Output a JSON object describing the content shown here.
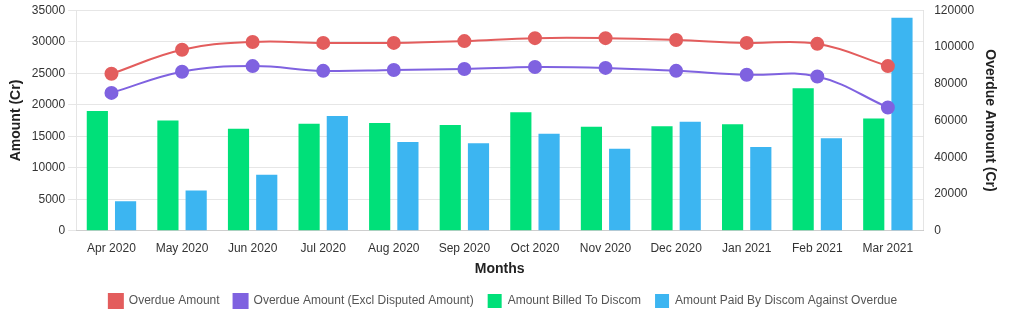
{
  "chart_data": {
    "type": "bar",
    "x_label": "Months",
    "y_label": "Amount (Cr)",
    "y2_label": "Overdue Amount (Cr)",
    "categories": [
      "Apr 2020",
      "May 2020",
      "Jun 2020",
      "Jul 2020",
      "Aug 2020",
      "Sep 2020",
      "Oct 2020",
      "Nov 2020",
      "Dec 2020",
      "Jan 2021",
      "Feb 2021",
      "Mar 2021"
    ],
    "ylim": [
      0,
      35000
    ],
    "yticks": [
      0,
      5000,
      10000,
      15000,
      20000,
      25000,
      30000,
      35000
    ],
    "y2lim": [
      0,
      120000
    ],
    "y2ticks": [
      0,
      20000,
      40000,
      60000,
      80000,
      100000,
      120000
    ],
    "grid": true,
    "legend": "bottom",
    "series": [
      {
        "name": "Overdue Amount",
        "type": "line",
        "axis": "y2",
        "color": "#e35d5d",
        "marker": "circle",
        "values": [
          85400,
          98500,
          102700,
          102200,
          102200,
          103200,
          104800,
          104800,
          103800,
          102200,
          101700,
          89600
        ]
      },
      {
        "name": "Overdue Amount (Excl Disputed Amount)",
        "type": "line",
        "axis": "y2",
        "color": "#7f62e0",
        "marker": "circle",
        "values": [
          75000,
          86500,
          89600,
          87000,
          87500,
          88000,
          89100,
          88600,
          87000,
          84900,
          83900,
          67100
        ]
      },
      {
        "name": "Amount Billed To Discom",
        "type": "bar",
        "color": "#00e079",
        "values": [
          19000,
          17500,
          16200,
          17000,
          17100,
          16800,
          18800,
          16500,
          16600,
          16900,
          22600,
          17800
        ]
      },
      {
        "name": "Amount Paid By Discom Against Overdue",
        "type": "bar",
        "color": "#3cb5f1",
        "values": [
          4700,
          6400,
          8900,
          18200,
          14100,
          13900,
          15400,
          13000,
          17300,
          13300,
          14700,
          33800
        ]
      }
    ]
  }
}
